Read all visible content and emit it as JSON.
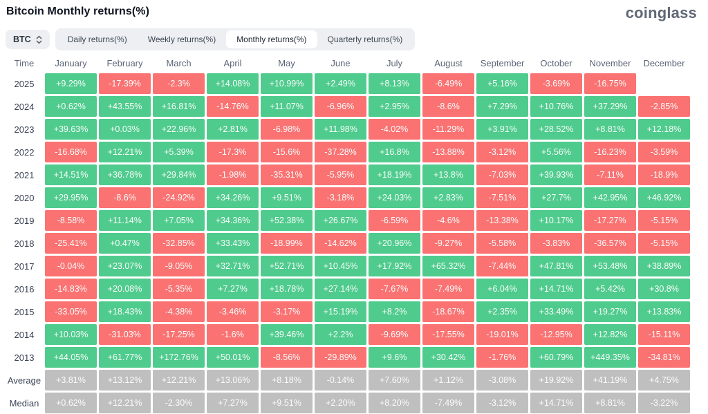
{
  "header": {
    "title": "Bitcoin Monthly returns(%)",
    "logo": "coinglass"
  },
  "controls": {
    "symbol_select": {
      "value": "BTC",
      "icon": "select-chevrons-icon"
    },
    "tabs": [
      {
        "label": "Daily returns(%)",
        "active": false
      },
      {
        "label": "Weekly returns(%)",
        "active": false
      },
      {
        "label": "Monthly returns(%)",
        "active": true
      },
      {
        "label": "Quarterly returns(%)",
        "active": false
      }
    ]
  },
  "colors": {
    "positive": "#4fcb8d",
    "negative": "#fa7272",
    "neutral": "#bfbfbf"
  },
  "table": {
    "time_header": "Time",
    "months": [
      "January",
      "February",
      "March",
      "April",
      "May",
      "June",
      "July",
      "August",
      "September",
      "October",
      "November",
      "December"
    ],
    "rows": [
      {
        "label": "2025",
        "type": "year",
        "values": [
          "+9.29%",
          "-17.39%",
          "-2.3%",
          "+14.08%",
          "+10.99%",
          "+2.49%",
          "+8.13%",
          "-6.49%",
          "+5.16%",
          "-3.69%",
          "-16.75%",
          ""
        ]
      },
      {
        "label": "2024",
        "type": "year",
        "values": [
          "+0.62%",
          "+43.55%",
          "+16.81%",
          "-14.76%",
          "+11.07%",
          "-6.96%",
          "+2.95%",
          "-8.6%",
          "+7.29%",
          "+10.76%",
          "+37.29%",
          "-2.85%"
        ]
      },
      {
        "label": "2023",
        "type": "year",
        "values": [
          "+39.63%",
          "+0.03%",
          "+22.96%",
          "+2.81%",
          "-6.98%",
          "+11.98%",
          "-4.02%",
          "-11.29%",
          "+3.91%",
          "+28.52%",
          "+8.81%",
          "+12.18%"
        ]
      },
      {
        "label": "2022",
        "type": "year",
        "values": [
          "-16.68%",
          "+12.21%",
          "+5.39%",
          "-17.3%",
          "-15.6%",
          "-37.28%",
          "+16.8%",
          "-13.88%",
          "-3.12%",
          "+5.56%",
          "-16.23%",
          "-3.59%"
        ]
      },
      {
        "label": "2021",
        "type": "year",
        "values": [
          "+14.51%",
          "+36.78%",
          "+29.84%",
          "-1.98%",
          "-35.31%",
          "-5.95%",
          "+18.19%",
          "+13.8%",
          "-7.03%",
          "+39.93%",
          "-7.11%",
          "-18.9%"
        ]
      },
      {
        "label": "2020",
        "type": "year",
        "values": [
          "+29.95%",
          "-8.6%",
          "-24.92%",
          "+34.26%",
          "+9.51%",
          "-3.18%",
          "+24.03%",
          "+2.83%",
          "-7.51%",
          "+27.7%",
          "+42.95%",
          "+46.92%"
        ]
      },
      {
        "label": "2019",
        "type": "year",
        "values": [
          "-8.58%",
          "+11.14%",
          "+7.05%",
          "+34.36%",
          "+52.38%",
          "+26.67%",
          "-6.59%",
          "-4.6%",
          "-13.38%",
          "+10.17%",
          "-17.27%",
          "-5.15%"
        ]
      },
      {
        "label": "2018",
        "type": "year",
        "values": [
          "-25.41%",
          "+0.47%",
          "-32.85%",
          "+33.43%",
          "-18.99%",
          "-14.62%",
          "+20.96%",
          "-9.27%",
          "-5.58%",
          "-3.83%",
          "-36.57%",
          "-5.15%"
        ]
      },
      {
        "label": "2017",
        "type": "year",
        "values": [
          "-0.04%",
          "+23.07%",
          "-9.05%",
          "+32.71%",
          "+52.71%",
          "+10.45%",
          "+17.92%",
          "+65.32%",
          "-7.44%",
          "+47.81%",
          "+53.48%",
          "+38.89%"
        ]
      },
      {
        "label": "2016",
        "type": "year",
        "values": [
          "-14.83%",
          "+20.08%",
          "-5.35%",
          "+7.27%",
          "+18.78%",
          "+27.14%",
          "-7.67%",
          "-7.49%",
          "+6.04%",
          "+14.71%",
          "+5.42%",
          "+30.8%"
        ]
      },
      {
        "label": "2015",
        "type": "year",
        "values": [
          "-33.05%",
          "+18.43%",
          "-4.38%",
          "-3.46%",
          "-3.17%",
          "+15.19%",
          "+8.2%",
          "-18.67%",
          "+2.35%",
          "+33.49%",
          "+19.27%",
          "+13.83%"
        ]
      },
      {
        "label": "2014",
        "type": "year",
        "values": [
          "+10.03%",
          "-31.03%",
          "-17.25%",
          "-1.6%",
          "+39.46%",
          "+2.2%",
          "-9.69%",
          "-17.55%",
          "-19.01%",
          "-12.95%",
          "+12.82%",
          "-15.11%"
        ]
      },
      {
        "label": "2013",
        "type": "year",
        "values": [
          "+44.05%",
          "+61.77%",
          "+172.76%",
          "+50.01%",
          "-8.56%",
          "-29.89%",
          "+9.6%",
          "+30.42%",
          "-1.76%",
          "+60.79%",
          "+449.35%",
          "-34.81%"
        ]
      },
      {
        "label": "Average",
        "type": "summary",
        "values": [
          "+3.81%",
          "+13.12%",
          "+12.21%",
          "+13.06%",
          "+8.18%",
          "-0.14%",
          "+7.60%",
          "+1.12%",
          "-3.08%",
          "+19.92%",
          "+41.19%",
          "+4.75%"
        ]
      },
      {
        "label": "Median",
        "type": "summary",
        "values": [
          "+0.62%",
          "+12.21%",
          "-2.30%",
          "+7.27%",
          "+9.51%",
          "+2.20%",
          "+8.20%",
          "-7.49%",
          "-3.12%",
          "+14.71%",
          "+8.81%",
          "-3.22%"
        ]
      }
    ]
  }
}
